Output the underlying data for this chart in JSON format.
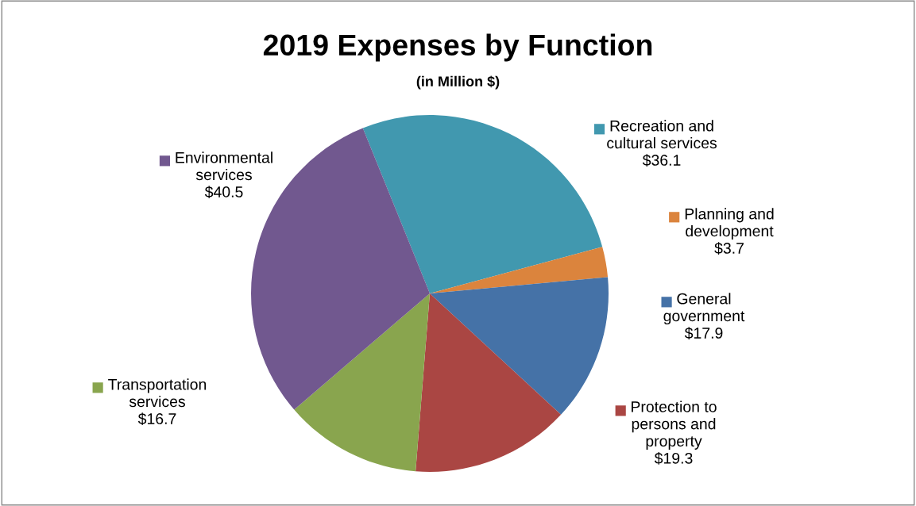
{
  "chart_data": {
    "type": "pie",
    "title": "2019 Expenses by Function",
    "subtitle": "(in Million $)",
    "categories": [
      "Recreation and\ncultural services",
      "Planning and\ndevelopment",
      "General\ngovernment",
      "Protection to\npersons and\nproperty",
      "Transportation\nservices",
      "Environmental\nservices"
    ],
    "values": [
      36.1,
      3.7,
      17.9,
      19.3,
      16.7,
      40.5
    ],
    "value_labels": [
      "$36.1",
      "$3.7",
      "$17.9",
      "$19.3",
      "$16.7",
      "$40.5"
    ],
    "colors": [
      "#4198af",
      "#db843d",
      "#4572a7",
      "#aa4643",
      "#89a54e",
      "#71588f"
    ],
    "legend": "right"
  }
}
